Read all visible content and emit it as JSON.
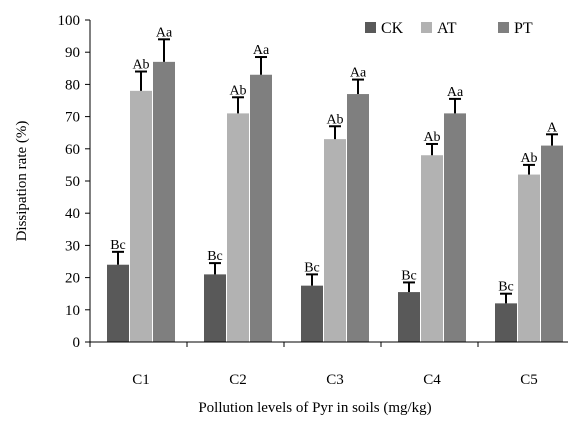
{
  "chart_data": {
    "type": "bar",
    "categories": [
      "C1",
      "C2",
      "C3",
      "C4",
      "C5"
    ],
    "series": [
      {
        "name": "CK",
        "color": "#595959",
        "values": [
          24,
          21,
          17.5,
          15.5,
          12
        ],
        "errors": [
          4,
          3.5,
          3.5,
          3,
          3
        ],
        "labels": [
          "Bc",
          "Bc",
          "Bc",
          "Bc",
          "Bc"
        ]
      },
      {
        "name": "AT",
        "color": "#b2b2b2",
        "values": [
          78,
          71,
          63,
          58,
          52
        ],
        "errors": [
          6,
          5,
          4,
          3.5,
          3
        ],
        "labels": [
          "Ab",
          "Ab",
          "Ab",
          "Ab",
          "Ab"
        ]
      },
      {
        "name": "PT",
        "color": "#7f7f7f",
        "values": [
          87,
          83,
          77,
          71,
          61
        ],
        "errors": [
          7,
          5.5,
          4.5,
          4.5,
          3.5
        ],
        "labels": [
          "Aa",
          "Aa",
          "Aa",
          "Aa",
          "A"
        ]
      }
    ],
    "title": "",
    "xlabel": "Pollution levels of Pyr in soils (mg/kg)",
    "ylabel": "Dissipation rate (%)",
    "ylim": [
      0,
      100
    ],
    "yticks": [
      "0",
      "10",
      "20",
      "30",
      "40",
      "50",
      "60",
      "70",
      "80",
      "90",
      "100"
    ],
    "grid": false,
    "legend_position": "top-right"
  }
}
